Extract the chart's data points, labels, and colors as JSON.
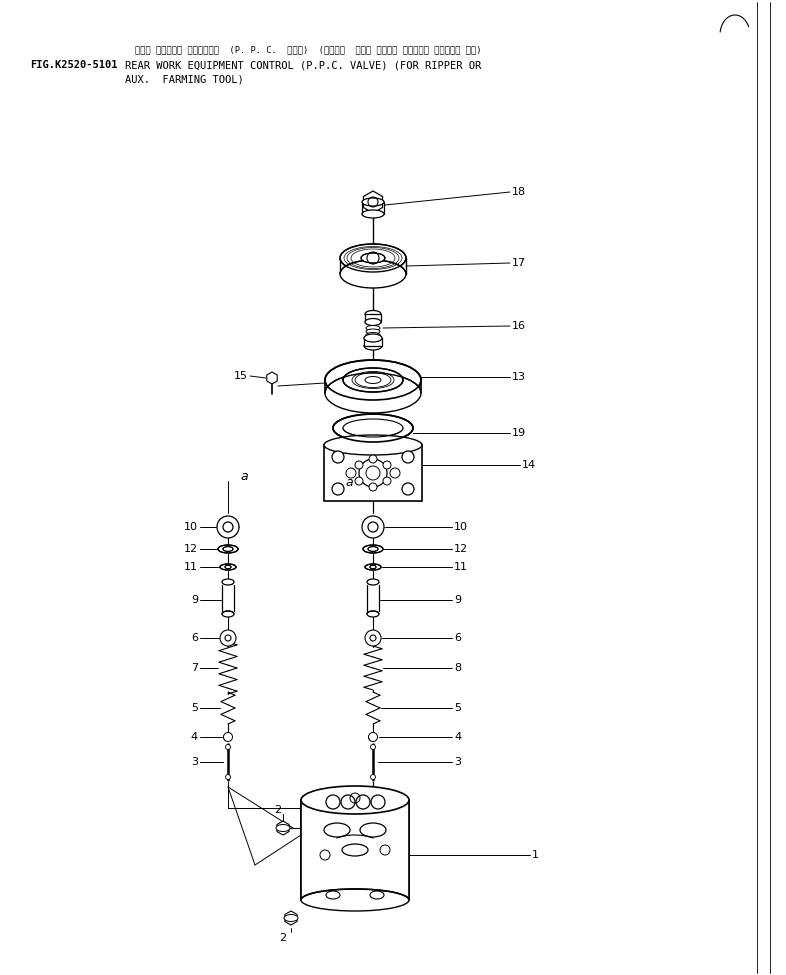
{
  "title_japanese": "リヤー サギ・ヨキ コントロール  (P. P. C.  バルブ)  (リッパー  マタハ ノウコウ サギ・ヨキ ソウチャク ヨウ)",
  "fig_label": "FIG.K2520-5101",
  "title_line1": "REAR WORK EQUIPMENT CONTROL (P.P.C. VALVE) (FOR RIPPER OR",
  "title_line2": "AUX.  FARMING TOOL)",
  "bg_color": "#ffffff",
  "lc": "#000000",
  "tc": "#000000",
  "fig_width": 7.86,
  "fig_height": 9.75,
  "dpi": 100
}
